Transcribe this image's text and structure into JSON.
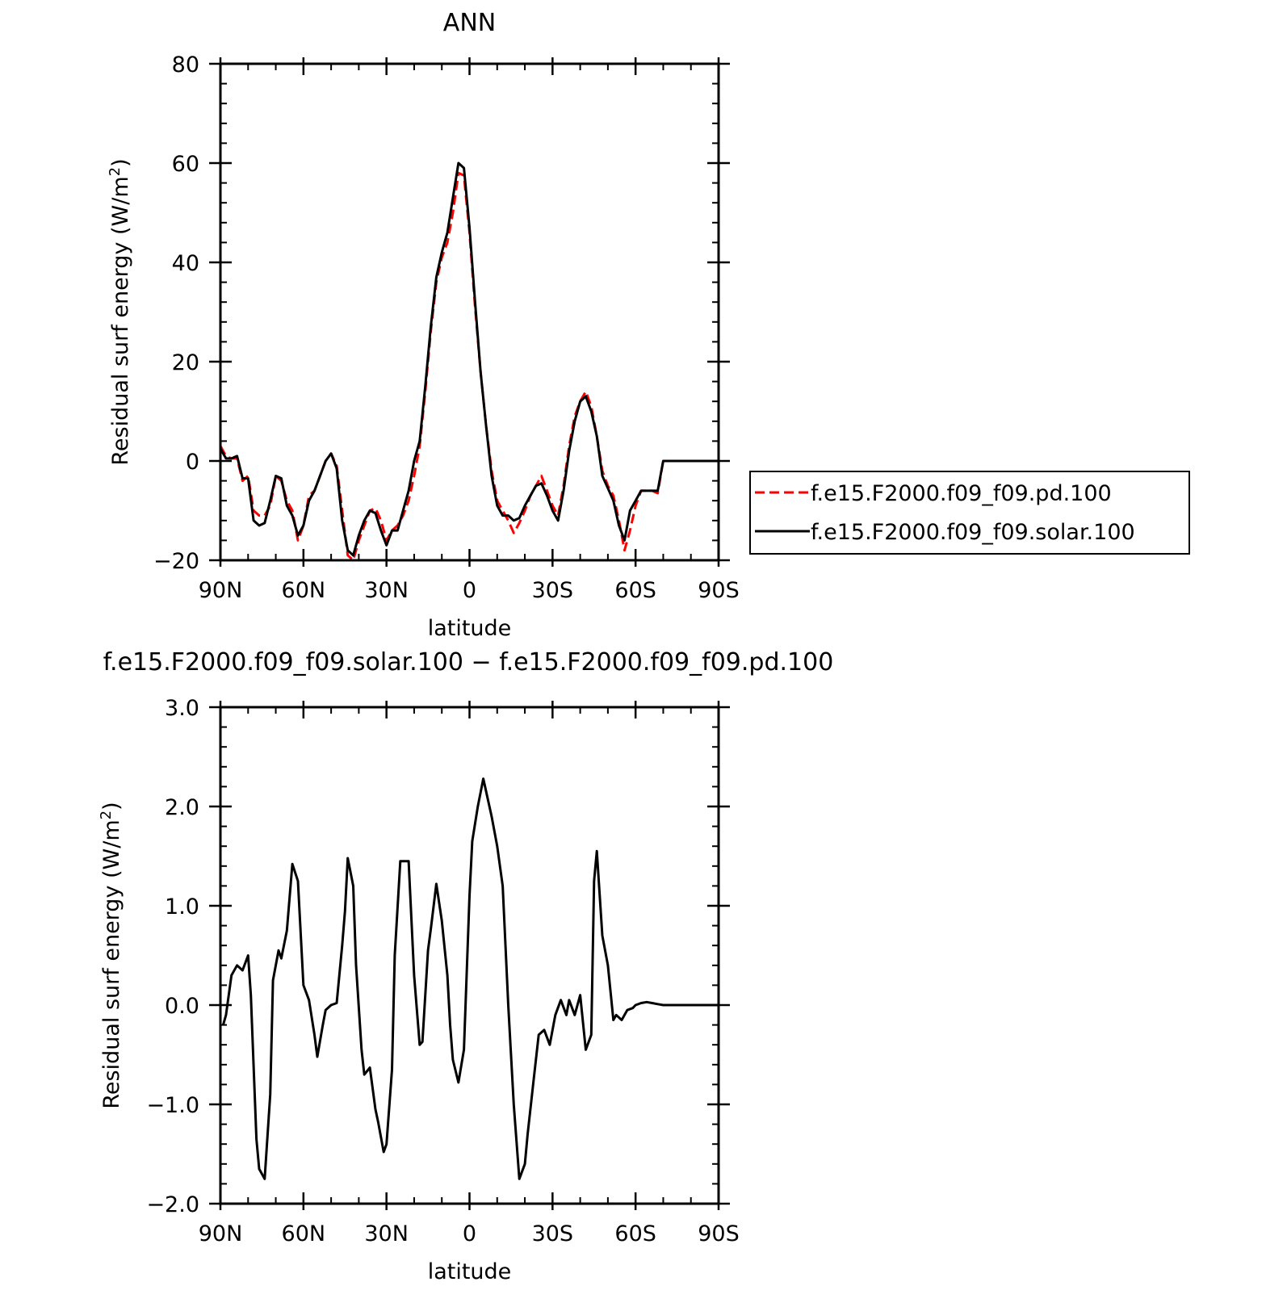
{
  "chart_data": [
    {
      "type": "line",
      "title": "ANN",
      "xlabel": "latitude",
      "ylabel": "Residual surf energy (W/m",
      "ylabel_sup": "2",
      "ylabel_close": ")",
      "xlim": [
        90,
        -90
      ],
      "ylim": [
        -20,
        80
      ],
      "xticks": [
        {
          "value": 90,
          "label": "90N"
        },
        {
          "value": 60,
          "label": "60N"
        },
        {
          "value": 30,
          "label": "30N"
        },
        {
          "value": 0,
          "label": "0"
        },
        {
          "value": -30,
          "label": "30S"
        },
        {
          "value": -60,
          "label": "60S"
        },
        {
          "value": -90,
          "label": "90S"
        }
      ],
      "yticks": [
        {
          "value": -20,
          "label": "−20"
        },
        {
          "value": 0,
          "label": "0"
        },
        {
          "value": 20,
          "label": "20"
        },
        {
          "value": 40,
          "label": "40"
        },
        {
          "value": 60,
          "label": "60"
        },
        {
          "value": 80,
          "label": "80"
        }
      ],
      "legend": "right",
      "series": [
        {
          "name": "f.e15.F2000.f09_f09.pd.100",
          "color": "#ff0000",
          "dash": "dashed",
          "x": [
            90,
            88,
            86,
            84,
            82,
            80,
            78,
            76,
            74,
            72,
            70,
            68,
            66,
            64,
            62,
            60,
            58,
            56,
            54,
            52,
            50,
            48,
            46,
            44,
            42,
            40,
            38,
            36,
            34,
            32,
            30,
            28,
            26,
            24,
            22,
            20,
            18,
            16,
            14,
            12,
            10,
            8,
            6,
            4,
            2,
            0,
            -2,
            -4,
            -6,
            -8,
            -10,
            -12,
            -14,
            -16,
            -18,
            -20,
            -22,
            -24,
            -26,
            -28,
            -30,
            -32,
            -34,
            -36,
            -38,
            -40,
            -42,
            -44,
            -46,
            -48,
            -50,
            -52,
            -54,
            -56,
            -58,
            -60,
            -62,
            -64,
            -66,
            -68,
            -70,
            -72,
            -74,
            -76,
            -78,
            -80,
            -82,
            -84,
            -86,
            -88,
            -90
          ],
          "y": [
            3,
            1,
            0.5,
            0.5,
            -4,
            -3,
            -10,
            -11,
            -11,
            -9,
            -3,
            -4,
            -8,
            -10,
            -16,
            -13,
            -7,
            -6,
            -3,
            0,
            1.5,
            -1,
            -10,
            -19,
            -20,
            -16,
            -13,
            -10,
            -9.5,
            -12,
            -16,
            -14,
            -13,
            -11,
            -8,
            -3,
            3,
            14,
            26,
            36,
            41,
            44,
            50,
            58,
            57.5,
            46,
            31,
            18,
            7,
            -2,
            -8,
            -10,
            -12,
            -14.5,
            -12.5,
            -10,
            -7,
            -5,
            -3,
            -6,
            -9,
            -11,
            -5,
            3,
            9,
            12,
            14,
            11,
            5,
            -2,
            -5,
            -7,
            -12,
            -18,
            -14,
            -9,
            -6,
            -6,
            -6,
            -6.5,
            0,
            0,
            0,
            0,
            0,
            0,
            0,
            0,
            0,
            0,
            0
          ]
        },
        {
          "name": "f.e15.F2000.f09_f09.solar.100",
          "color": "#000000",
          "dash": "solid",
          "x": [
            90,
            88,
            86,
            84,
            82,
            80,
            78,
            76,
            74,
            72,
            70,
            68,
            66,
            64,
            62,
            60,
            58,
            56,
            54,
            52,
            50,
            48,
            46,
            44,
            42,
            40,
            38,
            36,
            34,
            32,
            30,
            28,
            26,
            24,
            22,
            20,
            18,
            16,
            14,
            12,
            10,
            8,
            6,
            4,
            2,
            0,
            -2,
            -4,
            -6,
            -8,
            -10,
            -12,
            -14,
            -16,
            -18,
            -20,
            -22,
            -24,
            -26,
            -28,
            -30,
            -32,
            -34,
            -36,
            -38,
            -40,
            -42,
            -44,
            -46,
            -48,
            -50,
            -52,
            -54,
            -56,
            -58,
            -60,
            -62,
            -64,
            -66,
            -68,
            -70,
            -72,
            -74,
            -76,
            -78,
            -80,
            -82,
            -84,
            -86,
            -88,
            -90
          ],
          "y": [
            2.5,
            0.5,
            0.5,
            1,
            -3.5,
            -3.5,
            -12,
            -13,
            -12.5,
            -8,
            -3,
            -3.5,
            -9,
            -11,
            -15,
            -13,
            -8,
            -6,
            -3,
            0,
            1.5,
            -1.5,
            -12,
            -18,
            -19,
            -15,
            -12,
            -10,
            -10.5,
            -14,
            -17,
            -14,
            -14,
            -10,
            -6,
            0,
            4,
            15,
            27,
            37,
            42,
            46,
            53,
            60,
            59,
            47,
            32,
            18,
            7,
            -3,
            -9,
            -11,
            -11,
            -12,
            -11.5,
            -9,
            -7,
            -5,
            -4.5,
            -7,
            -10,
            -12,
            -6,
            2,
            8,
            12,
            13,
            10,
            5,
            -3,
            -5.5,
            -8,
            -13,
            -16,
            -10,
            -8,
            -6,
            -6,
            -6,
            -6,
            0,
            0,
            0,
            0,
            0,
            0,
            0,
            0,
            0,
            0,
            0
          ]
        }
      ]
    },
    {
      "type": "line",
      "title": "f.e15.F2000.f09_f09.solar.100 − f.e15.F2000.f09_f09.pd.100",
      "xlabel": "latitude",
      "ylabel": "Residual surf energy (W/m",
      "ylabel_sup": "2",
      "ylabel_close": ")",
      "xlim": [
        90,
        -90
      ],
      "ylim": [
        -2.0,
        3.0
      ],
      "xticks": [
        {
          "value": 90,
          "label": "90N"
        },
        {
          "value": 60,
          "label": "60N"
        },
        {
          "value": 30,
          "label": "30N"
        },
        {
          "value": 0,
          "label": "0"
        },
        {
          "value": -30,
          "label": "30S"
        },
        {
          "value": -60,
          "label": "60S"
        },
        {
          "value": -90,
          "label": "90S"
        }
      ],
      "yticks": [
        {
          "value": -2.0,
          "label": "−2.0"
        },
        {
          "value": -1.0,
          "label": "−1.0"
        },
        {
          "value": 0.0,
          "label": "0.0"
        },
        {
          "value": 1.0,
          "label": "1.0"
        },
        {
          "value": 2.0,
          "label": "2.0"
        },
        {
          "value": 3.0,
          "label": "3.0"
        }
      ],
      "series": [
        {
          "color": "#000000",
          "dash": "solid",
          "x": [
            89,
            88,
            86,
            84,
            82,
            80,
            79,
            77,
            76,
            74,
            72,
            71,
            69,
            68,
            66,
            64,
            62,
            60,
            58,
            56,
            55,
            53,
            52,
            50,
            48,
            46,
            45,
            44,
            42,
            41,
            39,
            38,
            36,
            34,
            33,
            31,
            30,
            28,
            27,
            25,
            24,
            22,
            20,
            18,
            17,
            15,
            14,
            12,
            10,
            8,
            7,
            6,
            4,
            2,
            0,
            -1,
            -3,
            -5,
            -6,
            -8,
            -10,
            -12,
            -14,
            -16,
            -18,
            -20,
            -21,
            -23,
            -25,
            -27,
            -29,
            -31,
            -33,
            -35,
            -36,
            -38,
            -40,
            -42,
            -44,
            -45,
            -46,
            -48,
            -50,
            -52,
            -53,
            -55,
            -57,
            -59,
            -60,
            -62,
            -64,
            -66,
            -68,
            -70,
            -72,
            -73,
            -75,
            -77,
            -79,
            -81,
            -83,
            -86,
            -88,
            -90
          ],
          "y": [
            -0.2,
            -0.1,
            0.3,
            0.4,
            0.35,
            0.5,
            0.1,
            -1.35,
            -1.65,
            -1.75,
            -0.9,
            0.25,
            0.55,
            0.47,
            0.75,
            1.42,
            1.25,
            0.2,
            0.05,
            -0.3,
            -0.52,
            -0.2,
            -0.05,
            0.0,
            0.02,
            0.6,
            0.95,
            1.48,
            1.2,
            0.4,
            -0.45,
            -0.7,
            -0.63,
            -1.05,
            -1.18,
            -1.48,
            -1.4,
            -0.65,
            0.5,
            1.45,
            1.45,
            1.45,
            0.3,
            -0.4,
            -0.37,
            0.55,
            0.76,
            1.22,
            0.85,
            0.3,
            -0.2,
            -0.55,
            -0.78,
            -0.45,
            1.1,
            1.65,
            2.0,
            2.28,
            2.15,
            1.9,
            1.6,
            1.2,
            0.0,
            -1.0,
            -1.75,
            -1.6,
            -1.3,
            -0.8,
            -0.3,
            -0.25,
            -0.4,
            -0.1,
            0.05,
            -0.1,
            0.05,
            -0.1,
            0.1,
            -0.45,
            -0.3,
            1.25,
            1.55,
            0.7,
            0.4,
            -0.15,
            -0.1,
            -0.15,
            -0.05,
            -0.03,
            0.0,
            0.02,
            0.03,
            0.02,
            0.01,
            0.0,
            0.0,
            0.0,
            0.0,
            0.0,
            0.0,
            0.0,
            0.0,
            0.0,
            0.0,
            0.0
          ]
        }
      ]
    }
  ]
}
